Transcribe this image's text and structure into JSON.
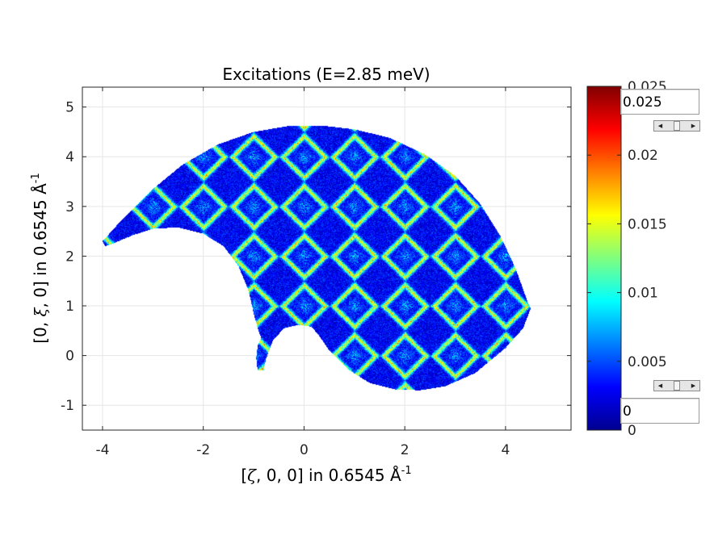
{
  "chart_data": {
    "type": "heatmap",
    "title": "Excitations (E=2.85 meV)",
    "xlabel": {
      "prefix": "[",
      "symbol": "ζ",
      "suffix": ", 0, 0] in 0.6545 Å",
      "exponent": "-1"
    },
    "ylabel": {
      "prefix": "[0, ",
      "symbol": "ξ",
      "suffix": ", 0] in 0.6545 Å",
      "exponent": "-1"
    },
    "xlim": [
      -4.4,
      5.3
    ],
    "ylim": [
      -1.5,
      5.4
    ],
    "xticks": [
      "-4",
      "-2",
      "0",
      "2",
      "4"
    ],
    "yticks": [
      "-1",
      "0",
      "1",
      "2",
      "3",
      "4",
      "5"
    ],
    "xtick_values": [
      -4,
      -2,
      0,
      2,
      4
    ],
    "ytick_values": [
      -1,
      0,
      1,
      2,
      3,
      4,
      5
    ],
    "grid": true,
    "colormap": "jet",
    "colorbar": {
      "range": [
        0,
        0.025
      ],
      "ticks": [
        "0",
        "0.005",
        "0.01",
        "0.015",
        "0.02",
        "0.025"
      ],
      "tick_values": [
        0,
        0.005,
        0.01,
        0.015,
        0.02,
        0.025
      ]
    },
    "pattern": {
      "description_units": "reciprocal lattice units",
      "ring_centers_period": 1,
      "ring_half_diagonal": 0.5,
      "background_level": 0.003,
      "ring_peak_level": 0.018
    }
  },
  "controls": {
    "max_value": "0.025",
    "min_value": "0"
  }
}
